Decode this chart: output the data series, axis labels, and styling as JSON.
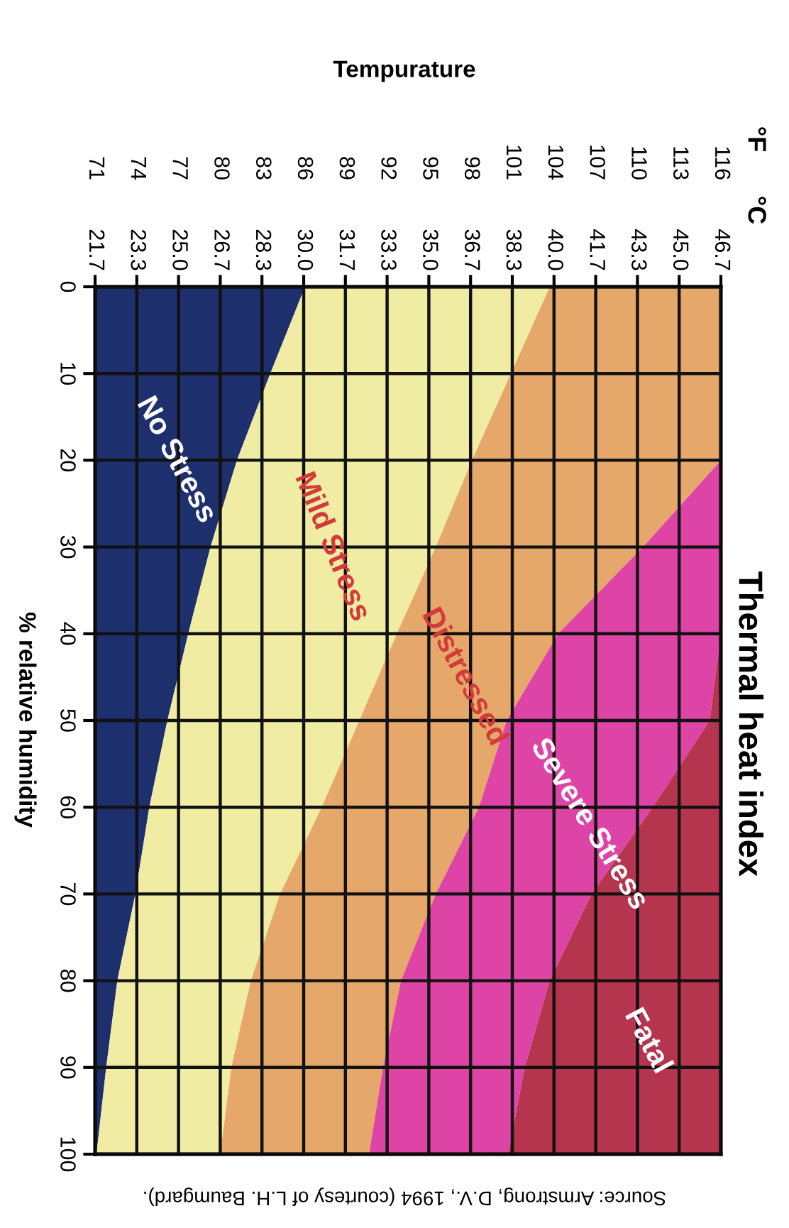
{
  "chart_data": {
    "type": "area",
    "orientation": "horizontal",
    "title": "Thermal heat index",
    "xlabel": "Tempurature",
    "ylabel": "% relative humidity",
    "x": [
      0,
      10,
      20,
      30,
      40,
      50,
      60,
      70,
      80,
      90,
      100
    ],
    "series": [
      {
        "name": "No Stress",
        "color": "#1e2f6e",
        "values": [
          86.1,
          83.6,
          81.2,
          79.3,
          77.7,
          76.2,
          74.9,
          73.9,
          72.6,
          71.8,
          71.1
        ]
      },
      {
        "name": "Mild Stress",
        "color": "#f1eca4",
        "values": [
          103.7,
          100.9,
          98.1,
          95.5,
          92.7,
          90.0,
          87.3,
          84.3,
          82.2,
          80.8,
          80.0
        ]
      },
      {
        "name": "Distressed",
        "color": "#e6a86a",
        "values": [
          116,
          116,
          116,
          110.4,
          104.3,
          100.6,
          98.6,
          95.5,
          93.0,
          91.7,
          90.7
        ]
      },
      {
        "name": "Severe Stress",
        "color": "#dd44a6",
        "values": [
          116,
          116,
          116,
          116,
          116,
          115.2,
          111.1,
          106.7,
          103.7,
          101.9,
          100.7
        ]
      },
      {
        "name": "Fatal",
        "color": "#b5344e",
        "values": [
          116,
          116,
          116,
          116,
          116,
          116,
          116,
          116,
          116,
          116,
          116
        ]
      }
    ],
    "xlim": [
      71,
      116
    ],
    "xticks": [
      71,
      74,
      77,
      80,
      83,
      86,
      89,
      92,
      95,
      98,
      101,
      104,
      107,
      110,
      113,
      116
    ],
    "x2lim": [
      21.67,
      46.67
    ],
    "x2ticks": [
      {
        "value": 21.67,
        "label": "21.7"
      },
      {
        "value": 23.33,
        "label": "23.3"
      },
      {
        "value": 25.0,
        "label": "25.0"
      },
      {
        "value": 26.67,
        "label": "26.7"
      },
      {
        "value": 28.33,
        "label": "28.3"
      },
      {
        "value": 30.0,
        "label": "30.0"
      },
      {
        "value": 31.67,
        "label": "31.7"
      },
      {
        "value": 33.33,
        "label": "33.3"
      },
      {
        "value": 35.0,
        "label": "35.0"
      },
      {
        "value": 36.67,
        "label": "36.7"
      },
      {
        "value": 38.33,
        "label": "38.3"
      },
      {
        "value": 40.0,
        "label": "40.0"
      },
      {
        "value": 41.67,
        "label": "41.7"
      },
      {
        "value": 43.33,
        "label": "43.3"
      },
      {
        "value": 45.0,
        "label": "45.0"
      },
      {
        "value": 46.67,
        "label": "46.7"
      }
    ],
    "ylim": [
      100,
      0
    ],
    "yticks": [
      0,
      10,
      20,
      30,
      40,
      50,
      60,
      70,
      80,
      90,
      100
    ],
    "grid": true,
    "annotations": [
      "°F",
      "°C",
      "Source: Armstrong, D.V., 1994 (courtesy of L.H. Baumgard)."
    ]
  }
}
